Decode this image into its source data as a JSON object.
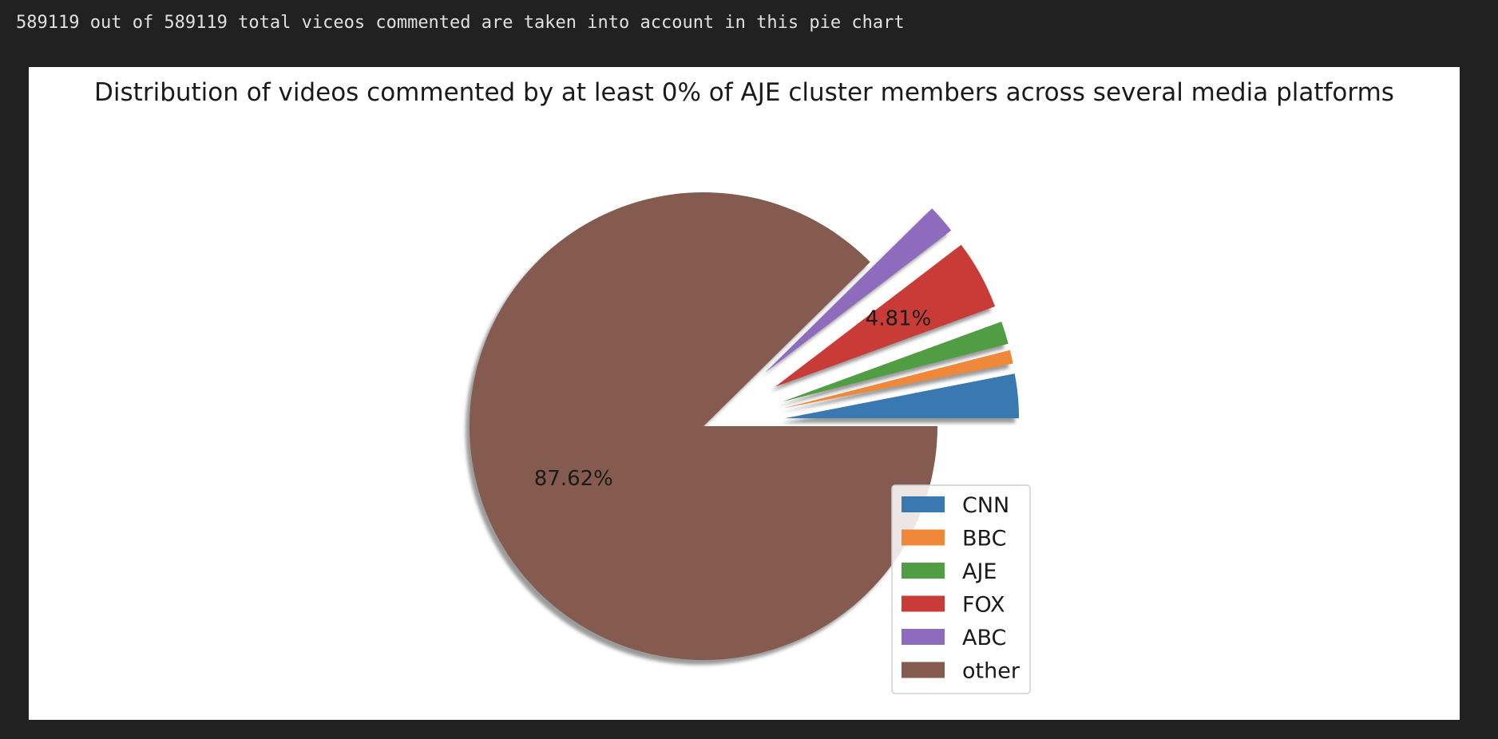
{
  "output": {
    "text": "589119 out of 589119 total viceos commented are taken into account in this pie chart"
  },
  "chart_data": {
    "type": "pie",
    "title": "Distribution of videos commented by at least 0% of AJE cluster members across several media platforms",
    "labels": [
      "CNN",
      "BBC",
      "AJE",
      "FOX",
      "ABC",
      "other"
    ],
    "values": [
      3.06,
      0.94,
      1.58,
      4.81,
      1.99,
      87.62
    ],
    "percent_labels": [
      "",
      "",
      "",
      "4.81%",
      "",
      "87.62%"
    ],
    "colors": [
      "#3a78b2",
      "#f0883a",
      "#519d44",
      "#c93b36",
      "#8e6bbd",
      "#855a4f"
    ],
    "exploded": [
      true,
      true,
      true,
      true,
      true,
      false
    ],
    "shadow": true,
    "start_angle": 0,
    "legend_position": "lower-right"
  }
}
